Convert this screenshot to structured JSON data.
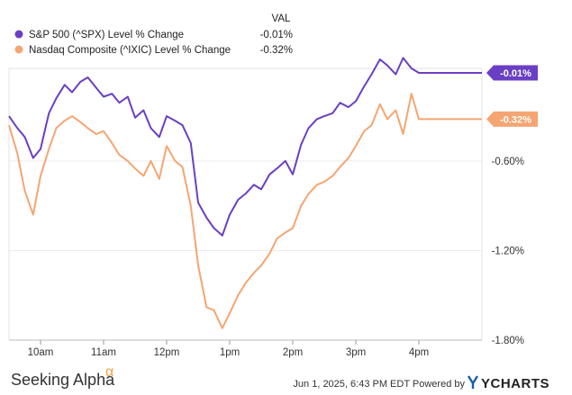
{
  "chart_data": {
    "type": "line",
    "legend": {
      "header": "VAL",
      "placement": "top-left"
    },
    "series": [
      {
        "name": "S&P 500 (^SPX) Level % Change",
        "value_label": "-0.01%",
        "end_tag": "-0.01%",
        "color": "#6a3fc4",
        "x": [
          "09:30",
          "09:38",
          "09:45",
          "09:53",
          "10:00",
          "10:08",
          "10:15",
          "10:23",
          "10:30",
          "10:38",
          "10:45",
          "10:53",
          "11:00",
          "11:08",
          "11:15",
          "11:23",
          "11:30",
          "11:38",
          "11:45",
          "11:53",
          "12:00",
          "12:08",
          "12:15",
          "12:23",
          "12:30",
          "12:38",
          "12:45",
          "12:53",
          "13:00",
          "13:08",
          "13:15",
          "13:23",
          "13:30",
          "13:38",
          "13:45",
          "13:53",
          "14:00",
          "14:08",
          "14:15",
          "14:23",
          "14:30",
          "14:38",
          "14:45",
          "14:53",
          "15:00",
          "15:08",
          "15:15",
          "15:23",
          "15:30",
          "15:38",
          "15:45",
          "15:53",
          "16:00",
          "16:15",
          "16:30",
          "17:00"
        ],
        "y": [
          -0.3,
          -0.38,
          -0.44,
          -0.58,
          -0.52,
          -0.28,
          -0.18,
          -0.09,
          -0.14,
          -0.07,
          -0.04,
          -0.11,
          -0.17,
          -0.15,
          -0.21,
          -0.17,
          -0.31,
          -0.26,
          -0.38,
          -0.44,
          -0.3,
          -0.33,
          -0.36,
          -0.48,
          -0.88,
          -0.98,
          -1.05,
          -1.1,
          -0.96,
          -0.86,
          -0.82,
          -0.76,
          -0.79,
          -0.69,
          -0.65,
          -0.6,
          -0.69,
          -0.49,
          -0.38,
          -0.32,
          -0.3,
          -0.28,
          -0.21,
          -0.24,
          -0.2,
          -0.1,
          -0.02,
          0.08,
          0.04,
          -0.02,
          0.09,
          0.02,
          -0.01,
          -0.01,
          -0.01,
          -0.01
        ]
      },
      {
        "name": "Nasdaq Composite (^IXIC) Level % Change",
        "value_label": "-0.32%",
        "end_tag": "-0.32%",
        "color": "#f5a572",
        "x": [
          "09:30",
          "09:38",
          "09:45",
          "09:53",
          "10:00",
          "10:08",
          "10:15",
          "10:23",
          "10:30",
          "10:38",
          "10:45",
          "10:53",
          "11:00",
          "11:08",
          "11:15",
          "11:23",
          "11:30",
          "11:38",
          "11:45",
          "11:53",
          "12:00",
          "12:08",
          "12:15",
          "12:23",
          "12:30",
          "12:38",
          "12:45",
          "12:53",
          "13:00",
          "13:08",
          "13:15",
          "13:23",
          "13:30",
          "13:38",
          "13:45",
          "13:53",
          "14:00",
          "14:08",
          "14:15",
          "14:23",
          "14:30",
          "14:38",
          "14:45",
          "14:53",
          "15:00",
          "15:08",
          "15:15",
          "15:23",
          "15:30",
          "15:38",
          "15:45",
          "15:53",
          "16:00",
          "16:15",
          "16:30",
          "17:00"
        ],
        "y": [
          -0.36,
          -0.55,
          -0.8,
          -0.96,
          -0.7,
          -0.52,
          -0.38,
          -0.33,
          -0.3,
          -0.34,
          -0.38,
          -0.42,
          -0.4,
          -0.48,
          -0.56,
          -0.6,
          -0.65,
          -0.7,
          -0.6,
          -0.72,
          -0.5,
          -0.6,
          -0.64,
          -0.9,
          -1.3,
          -1.58,
          -1.6,
          -1.72,
          -1.62,
          -1.5,
          -1.42,
          -1.35,
          -1.3,
          -1.22,
          -1.12,
          -1.08,
          -1.05,
          -0.9,
          -0.82,
          -0.76,
          -0.74,
          -0.7,
          -0.64,
          -0.58,
          -0.5,
          -0.4,
          -0.36,
          -0.22,
          -0.32,
          -0.26,
          -0.42,
          -0.15,
          -0.32,
          -0.32,
          -0.32,
          -0.32
        ]
      }
    ],
    "y_axis": {
      "ticks": [
        -0.6,
        -1.2,
        -1.8
      ],
      "tick_labels": [
        "-0.60%",
        "-1.20%",
        "-1.80%"
      ],
      "ylim": [
        -1.8,
        0.02
      ],
      "position": "right"
    },
    "x_axis": {
      "tick_labels": [
        "10am",
        "11am",
        "12pm",
        "1pm",
        "2pm",
        "3pm",
        "4pm"
      ],
      "tick_values": [
        "10:00",
        "11:00",
        "12:00",
        "13:00",
        "14:00",
        "15:00",
        "16:00"
      ],
      "xlim": [
        "09:30",
        "17:00"
      ]
    },
    "grid": "horizontal"
  },
  "footer": {
    "brand_name": "Seeking Alpha",
    "brand_mark": "α",
    "timestamp": "Jun 1, 2025, 6:43 PM EDT Powered by",
    "ycharts_logo": "YCHARTS"
  }
}
